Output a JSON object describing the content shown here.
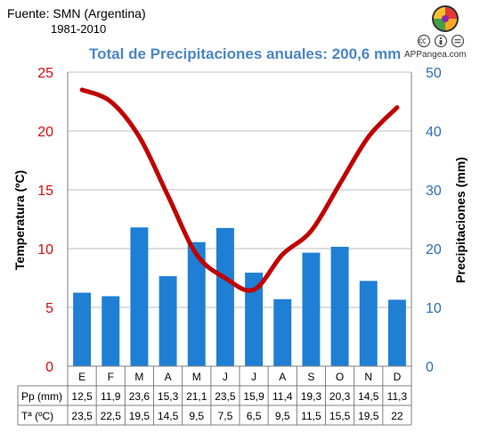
{
  "header": {
    "source": "Fuente: SMN (Argentina)",
    "period": "1981-2010",
    "brand": "APPangea.com"
  },
  "icons": {
    "logo": "puzzle-globe-icon",
    "license": "creative-commons-icon"
  },
  "colors": {
    "bars": "#1f7fd4",
    "line": "#c00000",
    "title": "#4a86c5",
    "left_axis": "#d01010",
    "right_axis": "#2f6fb3"
  },
  "chart_data": {
    "type": "bar",
    "title": "Total de Precipitaciones anuales: 200,6 mm",
    "categories": [
      "E",
      "F",
      "M",
      "A",
      "M",
      "J",
      "J",
      "A",
      "S",
      "O",
      "N",
      "D"
    ],
    "series": [
      {
        "name": "Pp (mm)",
        "type": "bar",
        "axis": "right",
        "values": [
          12.5,
          11.9,
          23.6,
          15.3,
          21.1,
          23.5,
          15.9,
          11.4,
          19.3,
          20.3,
          14.5,
          11.3
        ],
        "labels": [
          "12,5",
          "11,9",
          "23,6",
          "15,3",
          "21,1",
          "23,5",
          "15,9",
          "11,4",
          "19,3",
          "20,3",
          "14,5",
          "11,3"
        ]
      },
      {
        "name": "Tª (ºC)",
        "type": "line",
        "axis": "left",
        "values": [
          23.5,
          22.5,
          19.5,
          14.5,
          9.5,
          7.5,
          6.5,
          9.5,
          11.5,
          15.5,
          19.5,
          22
        ],
        "labels": [
          "23,5",
          "22,5",
          "19,5",
          "14,5",
          "9,5",
          "7,5",
          "6,5",
          "9,5",
          "11,5",
          "15,5",
          "19,5",
          "22"
        ]
      }
    ],
    "ylabel": "Temperatura (ºC)",
    "y2label": "Precipitaciones (mm)",
    "ylim": [
      0,
      25
    ],
    "y2lim": [
      0,
      50
    ],
    "yticks": [
      0,
      5,
      10,
      15,
      20,
      25
    ],
    "y2ticks": [
      0,
      10,
      20,
      30,
      40,
      50
    ],
    "grid": true,
    "legend": "table-below"
  }
}
